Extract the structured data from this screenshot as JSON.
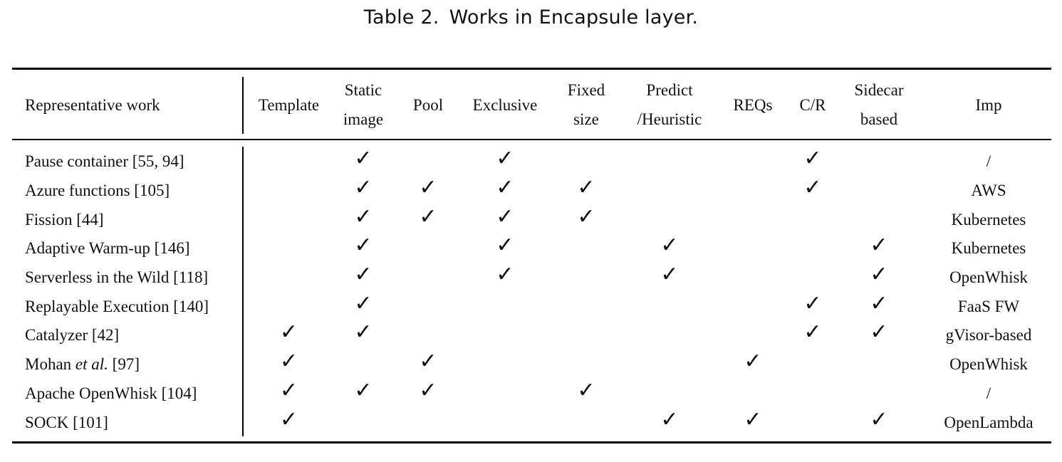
{
  "caption": {
    "label": "Table 2.",
    "title": "Works in Encapsule layer."
  },
  "columns": [
    {
      "key": "work",
      "lines": [
        "Representative work"
      ]
    },
    {
      "key": "template",
      "lines": [
        "Template"
      ]
    },
    {
      "key": "static_image",
      "lines": [
        "Static",
        "image"
      ]
    },
    {
      "key": "pool",
      "lines": [
        "Pool"
      ]
    },
    {
      "key": "exclusive",
      "lines": [
        "Exclusive"
      ]
    },
    {
      "key": "fixed_size",
      "lines": [
        "Fixed",
        "size"
      ]
    },
    {
      "key": "predict",
      "lines": [
        "Predict",
        "/Heuristic"
      ]
    },
    {
      "key": "reqs",
      "lines": [
        "REQs"
      ]
    },
    {
      "key": "cr",
      "lines": [
        "C/R"
      ]
    },
    {
      "key": "sidecar",
      "lines": [
        "Sidecar",
        "based"
      ]
    },
    {
      "key": "imp",
      "lines": [
        "Imp"
      ]
    }
  ],
  "check_symbol": "✓",
  "rows": [
    {
      "work": "Pause container [55, 94]",
      "checks": [
        false,
        true,
        false,
        true,
        false,
        false,
        false,
        true,
        false
      ],
      "imp": "/"
    },
    {
      "work": "Azure functions [105]",
      "checks": [
        false,
        true,
        true,
        true,
        true,
        false,
        false,
        true,
        false
      ],
      "imp": "AWS"
    },
    {
      "work": "Fission [44]",
      "checks": [
        false,
        true,
        true,
        true,
        true,
        false,
        false,
        false,
        false
      ],
      "imp": "Kubernetes"
    },
    {
      "work": "Adaptive Warm-up [146]",
      "checks": [
        false,
        true,
        false,
        true,
        false,
        true,
        false,
        false,
        true
      ],
      "imp": "Kubernetes"
    },
    {
      "work": "Serverless in the Wild [118]",
      "checks": [
        false,
        true,
        false,
        true,
        false,
        true,
        false,
        false,
        true
      ],
      "imp": "OpenWhisk"
    },
    {
      "work": "Replayable Execution [140]",
      "checks": [
        false,
        true,
        false,
        false,
        false,
        false,
        false,
        true,
        true
      ],
      "imp": "FaaS FW"
    },
    {
      "work": "Catalyzer [42]",
      "checks": [
        true,
        true,
        false,
        false,
        false,
        false,
        false,
        true,
        true
      ],
      "imp": "gVisor-based"
    },
    {
      "work": "Mohan",
      "work_italic": "et al.",
      "work_suffix": "[97]",
      "checks": [
        true,
        false,
        true,
        false,
        false,
        false,
        true,
        false,
        false
      ],
      "imp": "OpenWhisk"
    },
    {
      "work": "Apache OpenWhisk [104]",
      "checks": [
        true,
        true,
        true,
        false,
        true,
        false,
        false,
        false,
        false
      ],
      "imp": "/"
    },
    {
      "work": "SOCK [101]",
      "checks": [
        true,
        false,
        false,
        false,
        false,
        true,
        true,
        false,
        true
      ],
      "imp": "OpenLambda"
    }
  ]
}
